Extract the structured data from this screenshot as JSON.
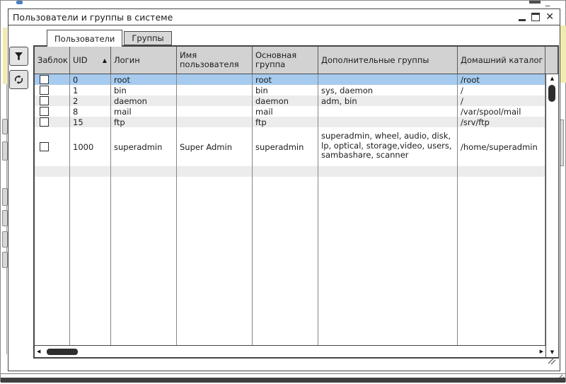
{
  "window": {
    "title": "Пользователи и группы в системе",
    "close_glyph": "✕"
  },
  "tabs": {
    "users": "Пользователи",
    "groups": "Группы"
  },
  "table": {
    "columns": [
      {
        "label": "Заблок"
      },
      {
        "label": "UID",
        "sort": "asc"
      },
      {
        "label": "Логин"
      },
      {
        "label": "Имя пользователя"
      },
      {
        "label": "Основная группа"
      },
      {
        "label": "Дополнительные группы"
      },
      {
        "label": "Домашний каталог"
      }
    ],
    "rows": [
      {
        "locked": false,
        "uid": "0",
        "login": "root",
        "name": "",
        "primary_group": "root",
        "extra_groups": "",
        "home_dir": "/root",
        "selected": true,
        "tall": false
      },
      {
        "locked": false,
        "uid": "1",
        "login": "bin",
        "name": "",
        "primary_group": "bin",
        "extra_groups": "sys, daemon",
        "home_dir": "/",
        "selected": false,
        "tall": false
      },
      {
        "locked": false,
        "uid": "2",
        "login": "daemon",
        "name": "",
        "primary_group": "daemon",
        "extra_groups": "adm, bin",
        "home_dir": "/",
        "selected": false,
        "tall": false
      },
      {
        "locked": false,
        "uid": "8",
        "login": "mail",
        "name": "",
        "primary_group": "mail",
        "extra_groups": "",
        "home_dir": "/var/spool/mail",
        "selected": false,
        "tall": false
      },
      {
        "locked": false,
        "uid": "15",
        "login": "ftp",
        "name": "",
        "primary_group": "ftp",
        "extra_groups": "",
        "home_dir": "/srv/ftp",
        "selected": false,
        "tall": false
      },
      {
        "locked": false,
        "uid": "1000",
        "login": "superadmin",
        "name": "Super Admin",
        "primary_group": "superadmin",
        "extra_groups": "superadmin, wheel, audio, disk, lp, optical, storage,video, users, sambashare, scanner",
        "home_dir": "/home/superadmin",
        "selected": false,
        "tall": true
      }
    ]
  },
  "icons": {
    "sort_asc": "▲",
    "scroll_up": "▲",
    "scroll_down": "▼",
    "scroll_left": "◀",
    "scroll_right": "▶"
  },
  "colors": {
    "selection": "#a6cbee",
    "stripe": "#ececec",
    "header_bg": "#d2d2d2",
    "accent_strip": "#f0ebae",
    "taskbar": "#3f3f3f"
  }
}
